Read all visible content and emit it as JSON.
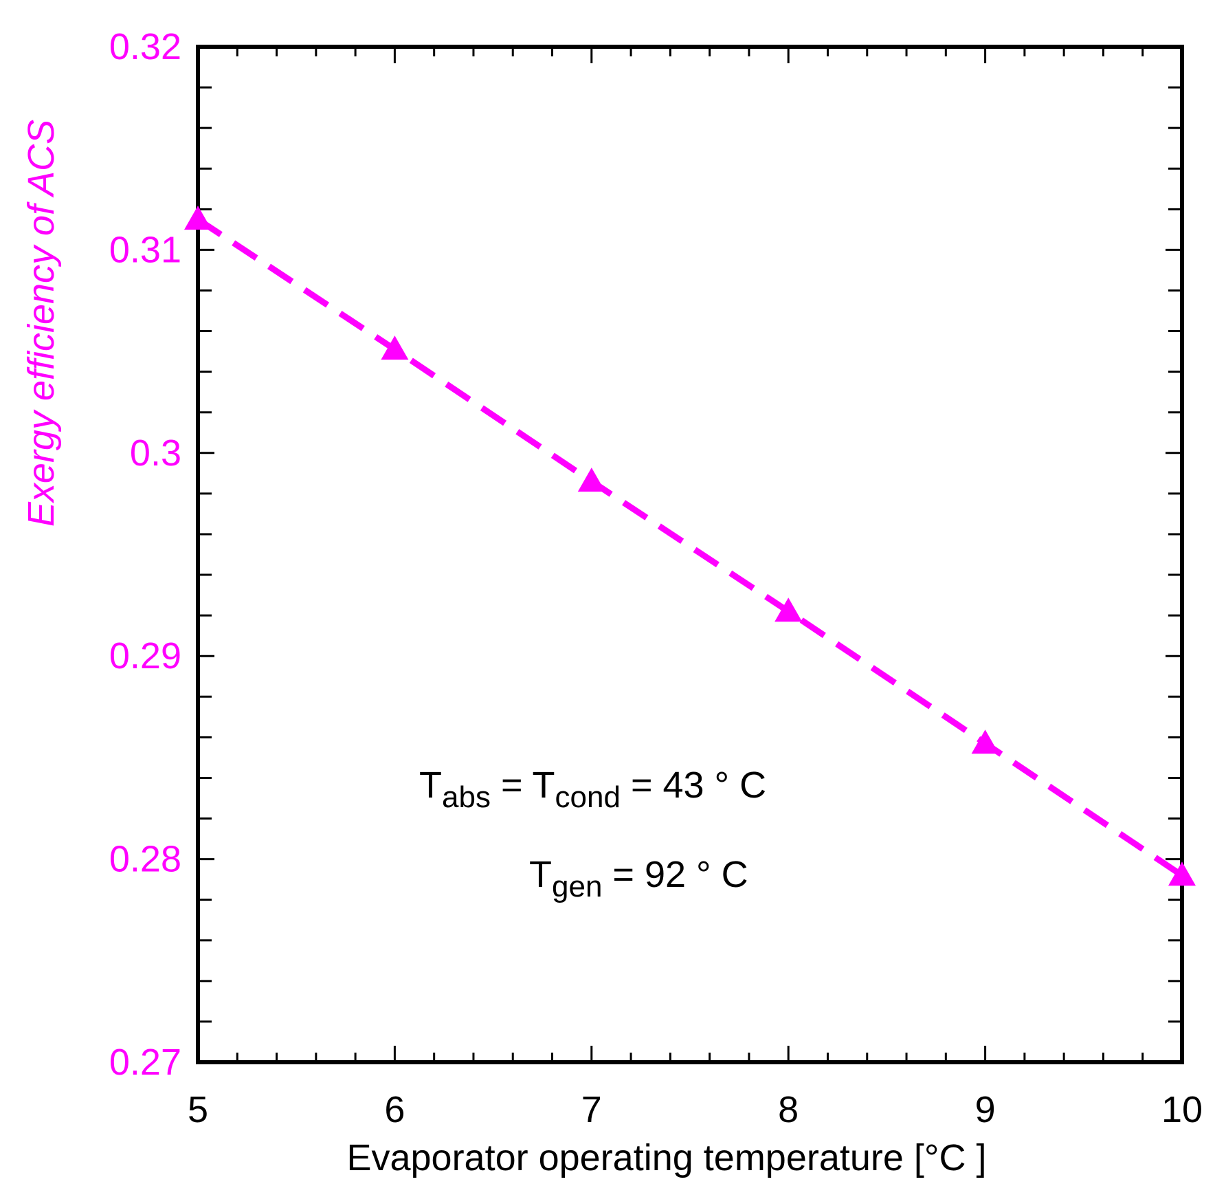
{
  "colors": {
    "series": "#ff00ff",
    "axis": "#000000",
    "y_label": "#ff00ff"
  },
  "chart_data": {
    "type": "line",
    "title": "",
    "xlabel": "Evaporator operating temperature [°C ]",
    "ylabel": "Exergy efficiency of ACS",
    "xlim": [
      5,
      10
    ],
    "ylim": [
      0.27,
      0.32
    ],
    "x_ticks": [
      "5",
      "6",
      "7",
      "8",
      "9",
      "10"
    ],
    "y_ticks": [
      "0.27",
      "0.28",
      "0.29",
      "0.3",
      "0.31",
      "0.32"
    ],
    "grid": false,
    "series": [
      {
        "marker": "triangle-icon",
        "line_style": "dashed",
        "x": [
          5,
          6,
          7,
          8,
          9,
          10
        ],
        "y": [
          0.3115,
          0.3051,
          0.2986,
          0.2922,
          0.2857,
          0.2792
        ]
      }
    ],
    "annotations": {
      "line1": {
        "T1": "T",
        "sub1": "abs",
        "eq1": " = T",
        "sub2": "cond",
        "rest": " = 43 ° C"
      },
      "line2": {
        "T1": "T",
        "sub1": "gen",
        "rest": " = 92 ° C"
      }
    }
  }
}
